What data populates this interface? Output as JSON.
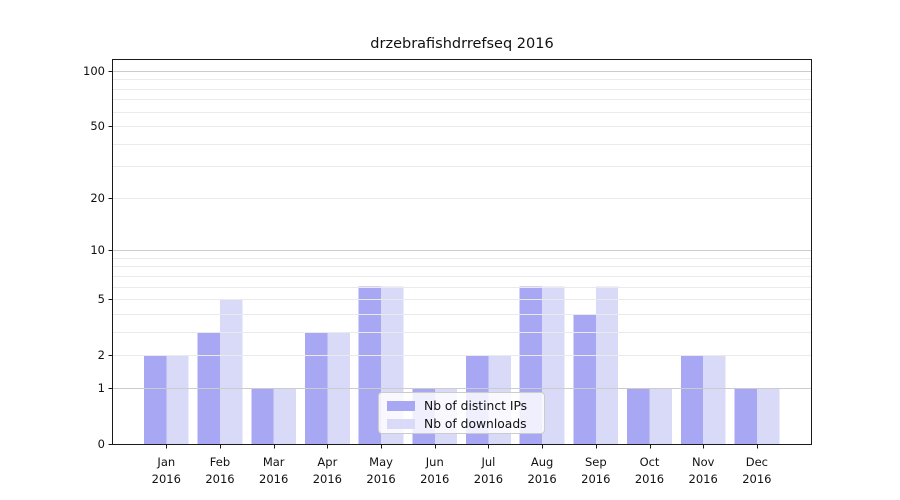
{
  "chart_data": {
    "type": "bar",
    "title": "drzebrafishdrrefseq 2016",
    "categories": [
      "Jan",
      "Feb",
      "Mar",
      "Apr",
      "May",
      "Jun",
      "Jul",
      "Aug",
      "Sep",
      "Oct",
      "Nov",
      "Dec"
    ],
    "category_year": "2016",
    "series": [
      {
        "name": "Nb of distinct IPs",
        "color": "#a7a7f3",
        "values": [
          2,
          3,
          1,
          3,
          6,
          1,
          2,
          6,
          4,
          1,
          2,
          1
        ]
      },
      {
        "name": "Nb of downloads",
        "color": "#d9d9f8",
        "values": [
          2,
          5,
          1,
          3,
          6,
          1,
          2,
          6,
          6,
          1,
          2,
          1
        ]
      }
    ],
    "xlabel": "",
    "ylabel": "",
    "y_scale": "log10(value+1)",
    "y_ticks": [
      0,
      1,
      2,
      5,
      10,
      20,
      50,
      100
    ],
    "y_gridlines_major": [
      1,
      10,
      100
    ],
    "y_gridlines_minor": [
      2,
      3,
      4,
      5,
      6,
      7,
      8,
      9,
      20,
      30,
      40,
      50,
      60,
      70,
      80,
      90
    ],
    "ylim": [
      0,
      116
    ],
    "grid": true,
    "legend_position": "lower center inside"
  },
  "colors": {
    "bar_distinct_ips": "#a7a7f3",
    "bar_downloads": "#d9d9f8",
    "grid_major": "#cccccc",
    "grid_minor": "#eaeaea",
    "axis": "#1a1a1a",
    "text": "#111111",
    "legend_border": "#cccccc"
  }
}
